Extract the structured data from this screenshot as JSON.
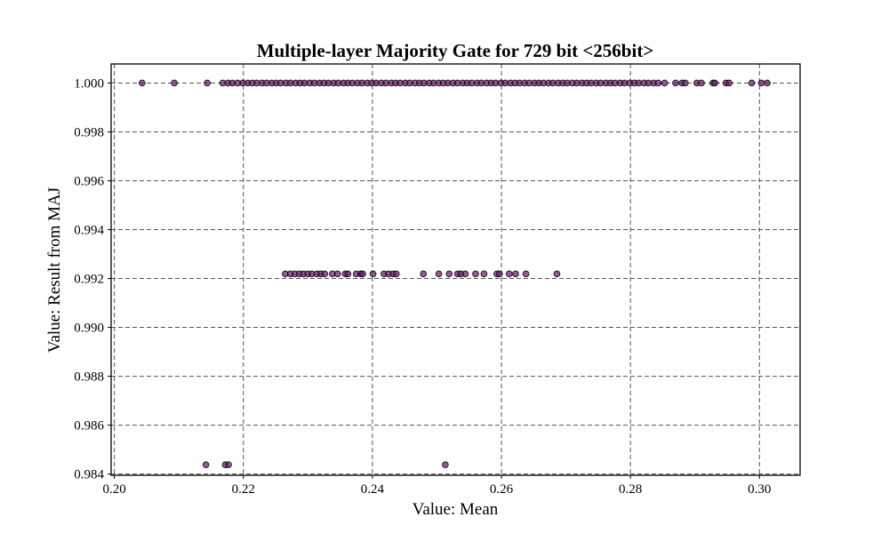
{
  "chart_data": {
    "type": "scatter",
    "title": "Multiple-layer Majority Gate for 729 bit <256bit>",
    "xlabel": "Value: Mean",
    "ylabel": "Value: Result from MAJ",
    "xlim": [
      0.1995,
      0.3063
    ],
    "ylim": [
      0.98395,
      1.00078
    ],
    "xticks": [
      0.2,
      0.22,
      0.24,
      0.26,
      0.28,
      0.3
    ],
    "xtick_labels": [
      "0.20",
      "0.22",
      "0.24",
      "0.26",
      "0.28",
      "0.30"
    ],
    "yticks": [
      0.984,
      0.986,
      0.988,
      0.99,
      0.992,
      0.994,
      0.996,
      0.998,
      1.0
    ],
    "ytick_labels": [
      "0.984",
      "0.986",
      "0.988",
      "0.990",
      "0.992",
      "0.994",
      "0.996",
      "0.998",
      "1.000"
    ],
    "grid": true,
    "marker_color": "#6a1b6a",
    "marker_edge_color": "#000000",
    "marker_alpha": 0.72,
    "series": [
      {
        "points": [
          [
            0.2043,
            1.0
          ],
          [
            0.2093,
            1.0
          ],
          [
            0.2144,
            1.0
          ],
          [
            0.2168,
            1.0
          ],
          [
            0.2176,
            1.0
          ],
          [
            0.2183,
            1.0
          ],
          [
            0.2191,
            1.0
          ],
          [
            0.2199,
            1.0
          ],
          [
            0.2207,
            1.0
          ],
          [
            0.2214,
            1.0
          ],
          [
            0.2221,
            1.0
          ],
          [
            0.2229,
            1.0
          ],
          [
            0.2236,
            1.0
          ],
          [
            0.2244,
            1.0
          ],
          [
            0.2251,
            1.0
          ],
          [
            0.2258,
            1.0
          ],
          [
            0.2266,
            1.0
          ],
          [
            0.2273,
            1.0
          ],
          [
            0.2281,
            1.0
          ],
          [
            0.2288,
            1.0
          ],
          [
            0.2295,
            1.0
          ],
          [
            0.2303,
            1.0
          ],
          [
            0.231,
            1.0
          ],
          [
            0.2318,
            1.0
          ],
          [
            0.2325,
            1.0
          ],
          [
            0.2332,
            1.0
          ],
          [
            0.234,
            1.0
          ],
          [
            0.2347,
            1.0
          ],
          [
            0.2355,
            1.0
          ],
          [
            0.2362,
            1.0
          ],
          [
            0.2369,
            1.0
          ],
          [
            0.2377,
            1.0
          ],
          [
            0.2384,
            1.0
          ],
          [
            0.2392,
            1.0
          ],
          [
            0.2399,
            1.0
          ],
          [
            0.2406,
            1.0
          ],
          [
            0.2414,
            1.0
          ],
          [
            0.2421,
            1.0
          ],
          [
            0.2429,
            1.0
          ],
          [
            0.2436,
            1.0
          ],
          [
            0.2443,
            1.0
          ],
          [
            0.2451,
            1.0
          ],
          [
            0.2458,
            1.0
          ],
          [
            0.2466,
            1.0
          ],
          [
            0.2473,
            1.0
          ],
          [
            0.248,
            1.0
          ],
          [
            0.2488,
            1.0
          ],
          [
            0.2495,
            1.0
          ],
          [
            0.2503,
            1.0
          ],
          [
            0.251,
            1.0
          ],
          [
            0.2517,
            1.0
          ],
          [
            0.2525,
            1.0
          ],
          [
            0.2532,
            1.0
          ],
          [
            0.254,
            1.0
          ],
          [
            0.2547,
            1.0
          ],
          [
            0.2554,
            1.0
          ],
          [
            0.2562,
            1.0
          ],
          [
            0.2569,
            1.0
          ],
          [
            0.2577,
            1.0
          ],
          [
            0.2584,
            1.0
          ],
          [
            0.2591,
            1.0
          ],
          [
            0.2599,
            1.0
          ],
          [
            0.2606,
            1.0
          ],
          [
            0.2614,
            1.0
          ],
          [
            0.2621,
            1.0
          ],
          [
            0.2628,
            1.0
          ],
          [
            0.2636,
            1.0
          ],
          [
            0.2643,
            1.0
          ],
          [
            0.2651,
            1.0
          ],
          [
            0.2658,
            1.0
          ],
          [
            0.2665,
            1.0
          ],
          [
            0.2673,
            1.0
          ],
          [
            0.268,
            1.0
          ],
          [
            0.2688,
            1.0
          ],
          [
            0.2695,
            1.0
          ],
          [
            0.2702,
            1.0
          ],
          [
            0.271,
            1.0
          ],
          [
            0.2717,
            1.0
          ],
          [
            0.2725,
            1.0
          ],
          [
            0.2732,
            1.0
          ],
          [
            0.2739,
            1.0
          ],
          [
            0.2747,
            1.0
          ],
          [
            0.2754,
            1.0
          ],
          [
            0.2762,
            1.0
          ],
          [
            0.2769,
            1.0
          ],
          [
            0.2776,
            1.0
          ],
          [
            0.2784,
            1.0
          ],
          [
            0.2791,
            1.0
          ],
          [
            0.2799,
            1.0
          ],
          [
            0.2806,
            1.0
          ],
          [
            0.2813,
            1.0
          ],
          [
            0.2821,
            1.0
          ],
          [
            0.2828,
            1.0
          ],
          [
            0.2836,
            1.0
          ],
          [
            0.2843,
            1.0
          ],
          [
            0.2853,
            1.0
          ],
          [
            0.287,
            1.0
          ],
          [
            0.288,
            1.0
          ],
          [
            0.2885,
            1.0
          ],
          [
            0.2903,
            1.0
          ],
          [
            0.291,
            1.0
          ],
          [
            0.2928,
            1.0
          ],
          [
            0.2931,
            1.0
          ],
          [
            0.2948,
            1.0
          ],
          [
            0.2953,
            1.0
          ],
          [
            0.2988,
            1.0
          ],
          [
            0.3003,
            1.0
          ],
          [
            0.3012,
            1.0
          ],
          [
            0.2265,
            0.99219
          ],
          [
            0.2273,
            0.99219
          ],
          [
            0.228,
            0.99219
          ],
          [
            0.2287,
            0.99219
          ],
          [
            0.2293,
            0.99219
          ],
          [
            0.23,
            0.99219
          ],
          [
            0.2306,
            0.99219
          ],
          [
            0.2314,
            0.99219
          ],
          [
            0.232,
            0.99219
          ],
          [
            0.2326,
            0.99219
          ],
          [
            0.2338,
            0.99219
          ],
          [
            0.2346,
            0.99219
          ],
          [
            0.2358,
            0.99219
          ],
          [
            0.2362,
            0.99219
          ],
          [
            0.2375,
            0.99219
          ],
          [
            0.2382,
            0.99219
          ],
          [
            0.2385,
            0.99219
          ],
          [
            0.2401,
            0.99219
          ],
          [
            0.2418,
            0.99219
          ],
          [
            0.2425,
            0.99219
          ],
          [
            0.2432,
            0.99219
          ],
          [
            0.2437,
            0.99219
          ],
          [
            0.2479,
            0.99219
          ],
          [
            0.2503,
            0.99219
          ],
          [
            0.2519,
            0.99219
          ],
          [
            0.2532,
            0.99219
          ],
          [
            0.2537,
            0.99219
          ],
          [
            0.2544,
            0.99219
          ],
          [
            0.256,
            0.99219
          ],
          [
            0.2573,
            0.99219
          ],
          [
            0.2593,
            0.99219
          ],
          [
            0.2597,
            0.99219
          ],
          [
            0.2612,
            0.99219
          ],
          [
            0.2622,
            0.99219
          ],
          [
            0.2638,
            0.99219
          ],
          [
            0.2686,
            0.99219
          ],
          [
            0.2142,
            0.98438
          ],
          [
            0.2172,
            0.98438
          ],
          [
            0.2177,
            0.98438
          ],
          [
            0.2513,
            0.98438
          ]
        ]
      }
    ]
  }
}
